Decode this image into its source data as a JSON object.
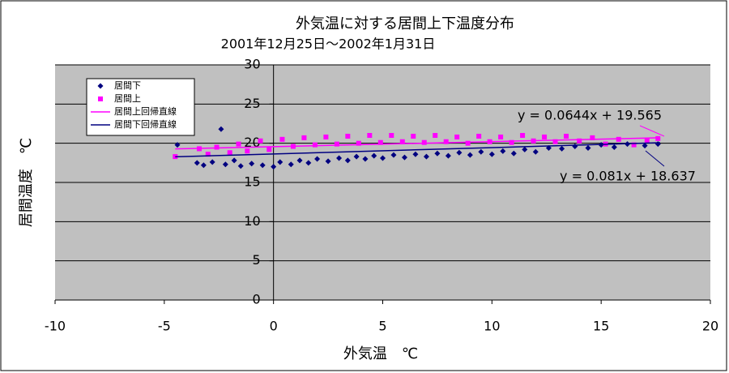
{
  "chart_data": {
    "type": "scatter",
    "title": "外気温に対する居間上下温度分布",
    "subtitle": "2001年12月25日～2002年1月31日",
    "x_label": "外気温　℃",
    "y_label": "居間温度　℃",
    "xlim": [
      -10,
      20
    ],
    "xticks": [
      -10,
      -5,
      0,
      5,
      10,
      15,
      20
    ],
    "ylim": [
      0,
      30
    ],
    "yticks": [
      0,
      5,
      10,
      15,
      20,
      25,
      30
    ],
    "grid": true,
    "legend": "upper-left",
    "series": [
      {
        "name": "居間下",
        "color": "#000080",
        "marker": "diamond",
        "x": [
          -4.4,
          -3.5,
          -3.2,
          -2.8,
          -2.4,
          -2.2,
          -1.8,
          -1.5,
          -1.0,
          -0.5,
          0,
          0.3,
          0.8,
          1.2,
          1.6,
          2.0,
          2.5,
          3.0,
          3.4,
          3.8,
          4.2,
          4.6,
          5.0,
          5.5,
          6.0,
          6.5,
          7.0,
          7.5,
          8.0,
          8.5,
          9.0,
          9.5,
          10.0,
          10.5,
          11.0,
          11.5,
          12.0,
          12.6,
          13.2,
          13.8,
          14.4,
          15.0,
          15.6,
          16.2,
          17.0,
          17.6
        ],
        "values": [
          19.8,
          17.5,
          17.2,
          17.6,
          21.8,
          17.3,
          17.8,
          17.1,
          17.4,
          17.2,
          17.0,
          17.6,
          17.3,
          17.8,
          17.5,
          18.0,
          17.7,
          18.1,
          17.8,
          18.3,
          18.0,
          18.4,
          18.1,
          18.5,
          18.2,
          18.6,
          18.3,
          18.7,
          18.4,
          18.8,
          18.5,
          18.9,
          18.6,
          19.0,
          18.7,
          19.2,
          18.9,
          19.4,
          19.3,
          19.6,
          19.4,
          19.8,
          19.5,
          19.9,
          19.7,
          19.9
        ]
      },
      {
        "name": "居間上",
        "color": "#ff00ff",
        "marker": "square",
        "x": [
          -4.5,
          -3.4,
          -3.0,
          -2.6,
          -2.0,
          -1.6,
          -1.2,
          -0.6,
          -0.2,
          0.4,
          0.9,
          1.4,
          1.9,
          2.4,
          2.9,
          3.4,
          3.9,
          4.4,
          4.9,
          5.4,
          5.9,
          6.4,
          6.9,
          7.4,
          7.9,
          8.4,
          8.9,
          9.4,
          9.9,
          10.4,
          10.9,
          11.4,
          11.9,
          12.4,
          12.9,
          13.4,
          14.0,
          14.6,
          15.2,
          15.8,
          16.5,
          17.1,
          17.6
        ],
        "values": [
          18.3,
          19.3,
          18.6,
          19.5,
          18.8,
          19.9,
          19.0,
          20.3,
          19.2,
          20.5,
          19.6,
          20.7,
          19.8,
          20.8,
          19.9,
          20.9,
          20.0,
          21.0,
          20.1,
          21.0,
          20.2,
          20.9,
          20.1,
          21.0,
          20.2,
          20.8,
          20.0,
          20.9,
          20.2,
          20.8,
          20.1,
          21.0,
          20.3,
          20.8,
          20.2,
          20.9,
          20.3,
          20.7,
          19.9,
          20.5,
          19.8,
          20.4,
          20.6
        ]
      },
      {
        "name": "居間上回帰直線",
        "color": "#ff00ff",
        "marker": "none",
        "x": [
          -4.5,
          17.7
        ],
        "values": [
          19.28,
          20.7
        ]
      },
      {
        "name": "居間下回帰直線",
        "color": "#000080",
        "marker": "none",
        "x": [
          -4.5,
          17.7
        ],
        "values": [
          18.27,
          20.07
        ]
      }
    ],
    "annotations": [
      "y = 0.0644x + 19.565",
      "y = 0.081x + 18.637"
    ]
  }
}
